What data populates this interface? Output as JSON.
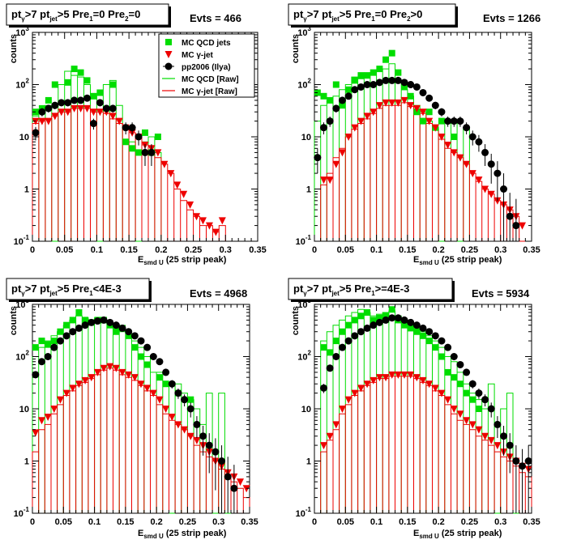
{
  "chart_data": [
    {
      "type": "scatter",
      "title": {
        "pre": "pt",
        "sub1": "γ",
        "mid": ">7  pt",
        "sub2": "jet",
        "post": ">5 Pre",
        "sub3": "1",
        "post2": "=0 Pre",
        "sub4": "2",
        "post3": "=0"
      },
      "evts_label": "Evts = 466",
      "xlabel_main": "E",
      "xlabel_sub": "smd U",
      "xlabel_rest": "(25 strip peak)",
      "ylabel": "counts",
      "xlim": [
        0,
        0.35
      ],
      "ylim": [
        0.1,
        1000
      ],
      "yscale": "log",
      "xticks": [
        "0",
        "0.05",
        "0.1",
        "0.15",
        "0.2",
        "0.25",
        "0.3",
        "0.35"
      ],
      "yticks": [
        {
          "m": "10",
          "e": "-1"
        },
        {
          "m": "1",
          "e": ""
        },
        {
          "m": "10",
          "e": ""
        },
        {
          "m": "10",
          "e": "2"
        },
        {
          "m": "10",
          "e": "3"
        }
      ],
      "legend": [
        "MC QCD jets",
        "MC γ-jet",
        "pp2006 (Ilya)",
        "MC QCD [Raw]",
        "MC γ-jet [Raw]"
      ],
      "x": [
        0.005,
        0.015,
        0.025,
        0.035,
        0.045,
        0.055,
        0.065,
        0.075,
        0.085,
        0.095,
        0.105,
        0.115,
        0.125,
        0.135,
        0.145,
        0.155,
        0.165,
        0.175,
        0.185,
        0.195,
        0.205,
        0.215,
        0.225,
        0.235,
        0.245,
        0.255,
        0.265,
        0.275,
        0.285,
        0.295
      ],
      "series": [
        {
          "name": "MC QCD jets",
          "values": [
            30,
            35,
            50,
            100,
            null,
            110,
            200,
            170,
            120,
            60,
            70,
            null,
            100,
            null,
            8,
            6,
            5,
            12,
            5,
            10,
            null,
            null,
            null,
            null,
            null,
            null,
            null,
            null,
            null,
            null
          ]
        },
        {
          "name": "MC γ-jet",
          "values": [
            20,
            20,
            20,
            25,
            30,
            30,
            35,
            35,
            35,
            30,
            30,
            30,
            25,
            20,
            15,
            12,
            10,
            7,
            6,
            5,
            3,
            2,
            1.2,
            0.8,
            0.5,
            0.3,
            0.25,
            0.2,
            0.15,
            0.25
          ]
        },
        {
          "name": "pp2006 (Ilya)",
          "values": [
            12,
            30,
            35,
            40,
            45,
            45,
            50,
            50,
            55,
            18,
            45,
            35,
            35,
            null,
            15,
            15,
            10,
            5,
            5,
            null,
            null,
            null,
            null,
            null,
            null,
            null,
            null,
            null,
            null,
            null
          ]
        },
        {
          "name": "MC QCD [Raw]",
          "values": [
            25,
            30,
            40,
            0.1,
            100,
            180,
            150,
            140,
            100,
            60,
            0.1,
            100,
            120,
            40,
            8,
            8,
            0.1,
            8,
            10,
            5,
            null,
            null,
            null,
            null,
            null,
            null,
            null,
            null,
            null,
            null
          ]
        },
        {
          "name": "MC γ-jet [Raw]",
          "values": [
            18,
            20,
            22,
            25,
            30,
            30,
            35,
            35,
            35,
            30,
            30,
            28,
            22,
            18,
            14,
            12,
            10,
            7,
            5,
            4,
            3,
            2,
            1.0,
            0.6,
            0.4,
            0.3,
            0.2,
            0.2,
            0.15,
            0.2
          ]
        }
      ]
    },
    {
      "type": "scatter",
      "title": {
        "pre": "pt",
        "sub1": "γ",
        "mid": ">7  pt",
        "sub2": "jet",
        "post": ">5 Pre",
        "sub3": "1",
        "post2": "=0 Pre",
        "sub4": "2",
        "post3": ">0"
      },
      "evts_label": "Evts = 1266",
      "xlabel_main": "E",
      "xlabel_sub": "smd U",
      "xlabel_rest": "(25 strip peak)",
      "ylabel": "counts",
      "xlim": [
        0,
        0.35
      ],
      "ylim": [
        0.1,
        1000
      ],
      "yscale": "log",
      "xticks": [
        "0",
        "0.05",
        "0.1",
        "0.15",
        "0.2",
        "0.25",
        "0.3",
        "0.35"
      ],
      "yticks": [
        {
          "m": "10",
          "e": "-1"
        },
        {
          "m": "1",
          "e": ""
        },
        {
          "m": "10",
          "e": ""
        },
        {
          "m": "10",
          "e": "2"
        },
        {
          "m": "10",
          "e": "3"
        }
      ],
      "x": [
        0.005,
        0.015,
        0.025,
        0.035,
        0.045,
        0.055,
        0.065,
        0.075,
        0.085,
        0.095,
        0.105,
        0.115,
        0.125,
        0.135,
        0.145,
        0.155,
        0.165,
        0.175,
        0.185,
        0.195,
        0.205,
        0.215,
        0.225,
        0.235,
        0.245,
        0.255,
        0.265,
        0.275,
        0.285,
        0.295,
        0.305,
        0.315,
        0.325,
        0.335
      ],
      "series": [
        {
          "name": "MC QCD jets",
          "values": [
            70,
            60,
            50,
            100,
            40,
            80,
            120,
            150,
            150,
            170,
            200,
            300,
            400,
            170,
            90,
            60,
            30,
            20,
            30,
            15,
            20,
            null,
            10,
            null,
            null,
            null,
            null,
            null,
            null,
            null,
            null,
            null,
            null,
            null
          ]
        },
        {
          "name": "MC γ-jet",
          "values": [
            null,
            1.5,
            1.5,
            3,
            5,
            10,
            15,
            20,
            25,
            30,
            40,
            45,
            45,
            45,
            50,
            40,
            35,
            30,
            20,
            15,
            10,
            7,
            5,
            4,
            3,
            2,
            1.5,
            1,
            0.8,
            0.6,
            0.5,
            0.4,
            0.3,
            0.2
          ]
        },
        {
          "name": "pp2006 (Ilya)",
          "values": [
            4,
            15,
            20,
            35,
            50,
            60,
            80,
            90,
            100,
            100,
            110,
            120,
            120,
            120,
            110,
            100,
            90,
            70,
            55,
            40,
            30,
            20,
            20,
            20,
            15,
            10,
            8,
            5,
            3,
            2,
            1,
            0.3,
            0.2,
            null
          ]
        },
        {
          "name": "MC QCD [Raw]",
          "values": [
            20,
            40,
            50,
            60,
            80,
            100,
            140,
            130,
            150,
            170,
            180,
            200,
            250,
            120,
            80,
            60,
            40,
            30,
            20,
            15,
            0.1,
            20,
            20,
            0.1,
            15,
            null,
            null,
            null,
            null,
            null,
            null,
            null,
            null,
            null
          ]
        },
        {
          "name": "MC γ-jet [Raw]",
          "values": [
            0.1,
            1.2,
            2,
            4,
            6,
            10,
            14,
            18,
            22,
            28,
            35,
            40,
            40,
            40,
            45,
            38,
            32,
            28,
            18,
            14,
            9,
            6,
            5,
            4,
            3,
            2,
            1.4,
            1,
            0.8,
            0.6,
            0.5,
            0.4,
            0.3,
            0.1
          ]
        }
      ]
    },
    {
      "type": "scatter",
      "title": {
        "pre": "pt",
        "sub1": "γ",
        "mid": ">7  pt",
        "sub2": "jet",
        "post": ">5 Pre",
        "sub3": "1",
        "post2": "<4E-3",
        "sub4": "",
        "post3": ""
      },
      "evts_label": "Evts = 4968",
      "xlabel_main": "E",
      "xlabel_sub": "smd U",
      "xlabel_rest": "(25 strip peak)",
      "ylabel": "counts",
      "xlim": [
        0,
        0.35
      ],
      "ylim": [
        0.1,
        1000
      ],
      "yscale": "log",
      "xticks": [
        "0",
        "0.05",
        "0.1",
        "0.15",
        "0.2",
        "0.25",
        "0.3",
        "0.35"
      ],
      "yticks": [
        {
          "m": "10",
          "e": "-1"
        },
        {
          "m": "1",
          "e": ""
        },
        {
          "m": "10",
          "e": ""
        },
        {
          "m": "10",
          "e": "2"
        },
        {
          "m": "10",
          "e": "3"
        }
      ],
      "x": [
        0.005,
        0.015,
        0.025,
        0.035,
        0.045,
        0.055,
        0.065,
        0.075,
        0.085,
        0.095,
        0.105,
        0.115,
        0.125,
        0.135,
        0.145,
        0.155,
        0.165,
        0.175,
        0.185,
        0.195,
        0.205,
        0.215,
        0.225,
        0.235,
        0.245,
        0.255,
        0.265,
        0.275,
        0.285,
        0.295,
        0.305,
        0.315,
        0.325,
        0.335,
        0.345
      ],
      "series": [
        {
          "name": "MC QCD jets",
          "values": [
            150,
            200,
            170,
            200,
            300,
            400,
            500,
            700,
            500,
            450,
            500,
            500,
            400,
            300,
            350,
            250,
            150,
            100,
            70,
            null,
            40,
            30,
            null,
            20,
            null,
            15,
            null,
            null,
            null,
            null,
            null,
            null,
            null,
            null,
            null
          ]
        },
        {
          "name": "MC γ-jet",
          "values": [
            3.5,
            6,
            7,
            10,
            15,
            20,
            25,
            30,
            35,
            40,
            50,
            60,
            65,
            60,
            50,
            45,
            40,
            30,
            25,
            20,
            15,
            10,
            7,
            5,
            4,
            3,
            2.5,
            2,
            1.5,
            1,
            0.8,
            0.6,
            0.5,
            0.4,
            0.3
          ]
        },
        {
          "name": "pp2006 (Ilya)",
          "values": [
            45,
            80,
            100,
            150,
            200,
            250,
            300,
            350,
            400,
            450,
            480,
            500,
            450,
            400,
            350,
            300,
            250,
            200,
            150,
            100,
            80,
            50,
            30,
            20,
            15,
            10,
            5,
            3,
            2,
            1.5,
            1,
            0.5,
            0.3,
            null,
            null
          ]
        },
        {
          "name": "MC QCD [Raw]",
          "values": [
            100,
            150,
            200,
            250,
            300,
            400,
            500,
            600,
            550,
            500,
            550,
            500,
            450,
            350,
            300,
            250,
            200,
            150,
            100,
            50,
            50,
            30,
            0.1,
            30,
            20,
            15,
            10,
            5,
            20,
            0.1,
            20,
            0.1,
            null,
            null,
            null
          ]
        },
        {
          "name": "MC γ-jet [Raw]",
          "values": [
            1.5,
            4,
            5,
            8,
            12,
            18,
            22,
            28,
            32,
            38,
            45,
            55,
            60,
            55,
            45,
            40,
            35,
            28,
            22,
            18,
            12,
            8,
            6,
            5,
            4,
            3,
            2,
            1.5,
            1.2,
            1,
            0.7,
            0.5,
            0.4,
            0.3,
            0.2
          ]
        }
      ]
    },
    {
      "type": "scatter",
      "title": {
        "pre": "pt",
        "sub1": "γ",
        "mid": ">7  pt",
        "sub2": "jet",
        "post": ">5 Pre",
        "sub3": "1",
        "post2": ">=4E-3",
        "sub4": "",
        "post3": ""
      },
      "evts_label": "Evts = 5934",
      "xlabel_main": "E",
      "xlabel_sub": "smd U",
      "xlabel_rest": "(25 strip peak)",
      "ylabel": "counts",
      "xlim": [
        0,
        0.35
      ],
      "ylim": [
        0.1,
        1000
      ],
      "yscale": "log",
      "xticks": [
        "0",
        "0.05",
        "0.1",
        "0.15",
        "0.2",
        "0.25",
        "0.3",
        "0.35"
      ],
      "yticks": [
        {
          "m": "10",
          "e": "-1"
        },
        {
          "m": "1",
          "e": ""
        },
        {
          "m": "10",
          "e": ""
        },
        {
          "m": "10",
          "e": "2"
        },
        {
          "m": "10",
          "e": "3"
        }
      ],
      "x": [
        0.005,
        0.015,
        0.025,
        0.035,
        0.045,
        0.055,
        0.065,
        0.075,
        0.085,
        0.095,
        0.105,
        0.115,
        0.125,
        0.135,
        0.145,
        0.155,
        0.165,
        0.175,
        0.185,
        0.195,
        0.205,
        0.215,
        0.225,
        0.235,
        0.245,
        0.255,
        0.265,
        0.275,
        0.285,
        0.295,
        0.305,
        0.315,
        0.325,
        0.335,
        0.345
      ],
      "series": [
        {
          "name": "MC QCD jets",
          "values": [
            null,
            150,
            120,
            200,
            300,
            400,
            500,
            600,
            700,
            500,
            550,
            600,
            800,
            500,
            400,
            350,
            300,
            250,
            200,
            150,
            100,
            50,
            40,
            30,
            20,
            15,
            10,
            null,
            null,
            null,
            null,
            null,
            null,
            null,
            null
          ]
        },
        {
          "name": "MC γ-jet",
          "values": [
            null,
            2,
            3,
            5,
            10,
            15,
            20,
            25,
            30,
            35,
            40,
            40,
            45,
            45,
            45,
            45,
            40,
            35,
            30,
            25,
            20,
            15,
            10,
            8,
            6,
            5,
            4,
            3,
            2.5,
            2,
            1.5,
            1.2,
            1,
            0.8,
            0.7
          ]
        },
        {
          "name": "pp2006 (Ilya)",
          "values": [
            null,
            25,
            60,
            100,
            150,
            200,
            250,
            300,
            350,
            400,
            450,
            500,
            550,
            550,
            500,
            450,
            400,
            350,
            300,
            250,
            200,
            150,
            100,
            70,
            50,
            30,
            20,
            15,
            10,
            5,
            3,
            2,
            1,
            0.8,
            1
          ]
        },
        {
          "name": "MC QCD [Raw]",
          "values": [
            0.1,
            200,
            300,
            400,
            500,
            600,
            700,
            800,
            700,
            600,
            650,
            700,
            750,
            600,
            500,
            400,
            350,
            300,
            250,
            200,
            150,
            100,
            80,
            50,
            30,
            20,
            15,
            10,
            30,
            0.1,
            10,
            20,
            0.1,
            null,
            null
          ]
        },
        {
          "name": "MC γ-jet [Raw]",
          "values": [
            0.1,
            1.5,
            2.5,
            4,
            8,
            12,
            18,
            22,
            28,
            32,
            38,
            38,
            42,
            42,
            42,
            42,
            38,
            32,
            28,
            22,
            18,
            12,
            8,
            6,
            5,
            4,
            3,
            2.5,
            2,
            1.5,
            1.2,
            1,
            0.8,
            0.6,
            0.5
          ]
        }
      ]
    }
  ],
  "colors": {
    "qcd": "#00dd00",
    "gamma": "#ee0000",
    "data": "#000000"
  }
}
